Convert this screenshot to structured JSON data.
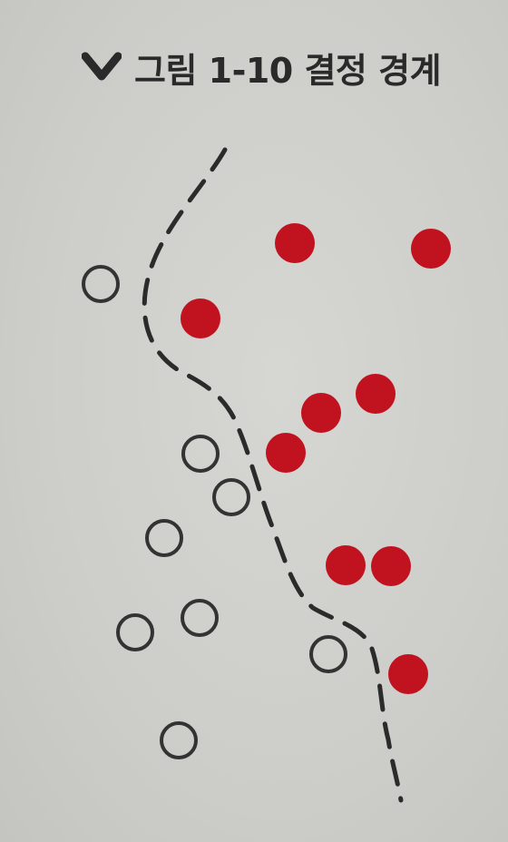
{
  "figure": {
    "caption": "그림 1-10 결정 경계",
    "caption_icon": "chevron-down-icon"
  },
  "colors": {
    "background": "#cfcfcb",
    "filled_point": "#c1121f",
    "hollow_point_stroke": "#333333",
    "boundary": "#2b2b2b",
    "caption_text": "#2a2a2a"
  },
  "legend": {
    "classes": [
      {
        "marker": "filled-circle",
        "color": "#c1121f"
      },
      {
        "marker": "hollow-circle",
        "color": "#333333"
      }
    ]
  },
  "boundary_style": "dashed-curve"
}
